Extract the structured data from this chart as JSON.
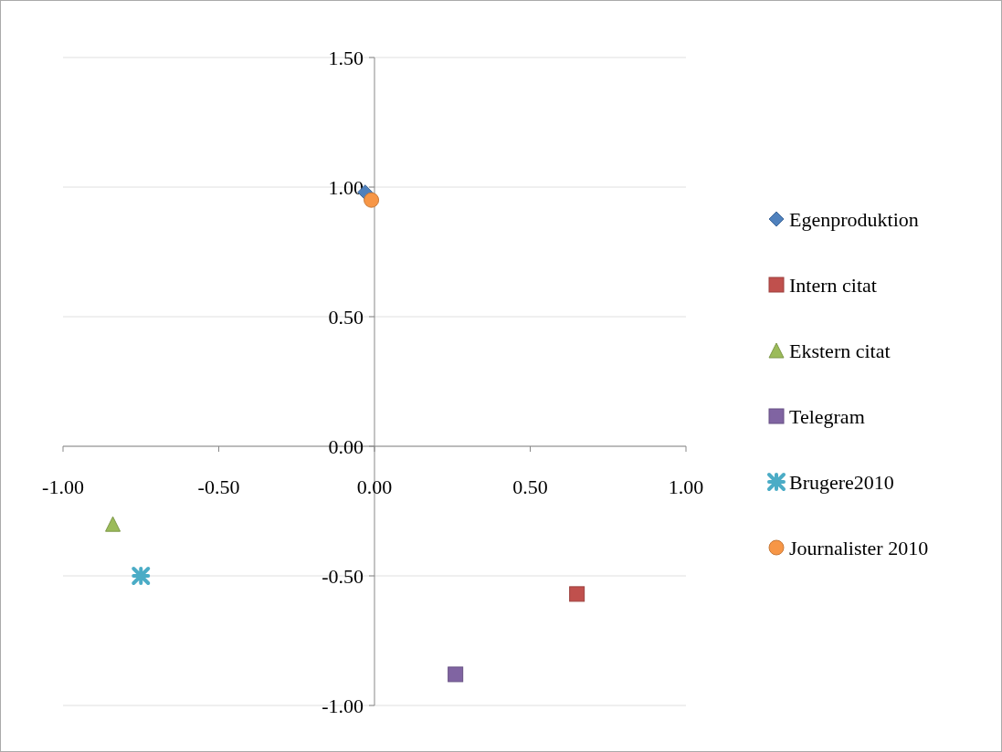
{
  "chart_data": {
    "type": "scatter",
    "xlim": [
      -1,
      1
    ],
    "ylim": [
      -1,
      1.5
    ],
    "xticks": [
      {
        "value": -1,
        "label": "-1.00"
      },
      {
        "value": -0.5,
        "label": "-0.50"
      },
      {
        "value": 0,
        "label": "0.00"
      },
      {
        "value": 0.5,
        "label": "0.50"
      },
      {
        "value": 1,
        "label": "1.00"
      }
    ],
    "yticks": [
      {
        "value": -1,
        "label": "-1.00"
      },
      {
        "value": -0.5,
        "label": "-0.50"
      },
      {
        "value": 0,
        "label": "0.00"
      },
      {
        "value": 0.5,
        "label": "0.50"
      },
      {
        "value": 1,
        "label": "1.00"
      },
      {
        "value": 1.5,
        "label": "1.50"
      }
    ],
    "grid": "y",
    "legend": "right",
    "series": [
      {
        "name": "Egenproduktion",
        "color": "#4f81bd",
        "marker": "diamond",
        "x": [
          -0.03
        ],
        "values": [
          0.98
        ]
      },
      {
        "name": "Intern citat",
        "color": "#c0504d",
        "marker": "square",
        "x": [
          0.65
        ],
        "values": [
          -0.57
        ]
      },
      {
        "name": "Ekstern citat",
        "color": "#9bbb59",
        "marker": "triangle",
        "x": [
          -0.84
        ],
        "values": [
          -0.3
        ]
      },
      {
        "name": "Telegram",
        "color": "#8064a2",
        "marker": "square",
        "x": [
          0.26
        ],
        "values": [
          -0.88
        ]
      },
      {
        "name": "Brugere2010",
        "color": "#4bacc6",
        "marker": "cross",
        "x": [
          -0.75
        ],
        "values": [
          -0.5
        ]
      },
      {
        "name": "Journalister 2010",
        "color": "#f79646",
        "marker": "circle",
        "x": [
          -0.01
        ],
        "values": [
          0.95
        ]
      }
    ]
  }
}
